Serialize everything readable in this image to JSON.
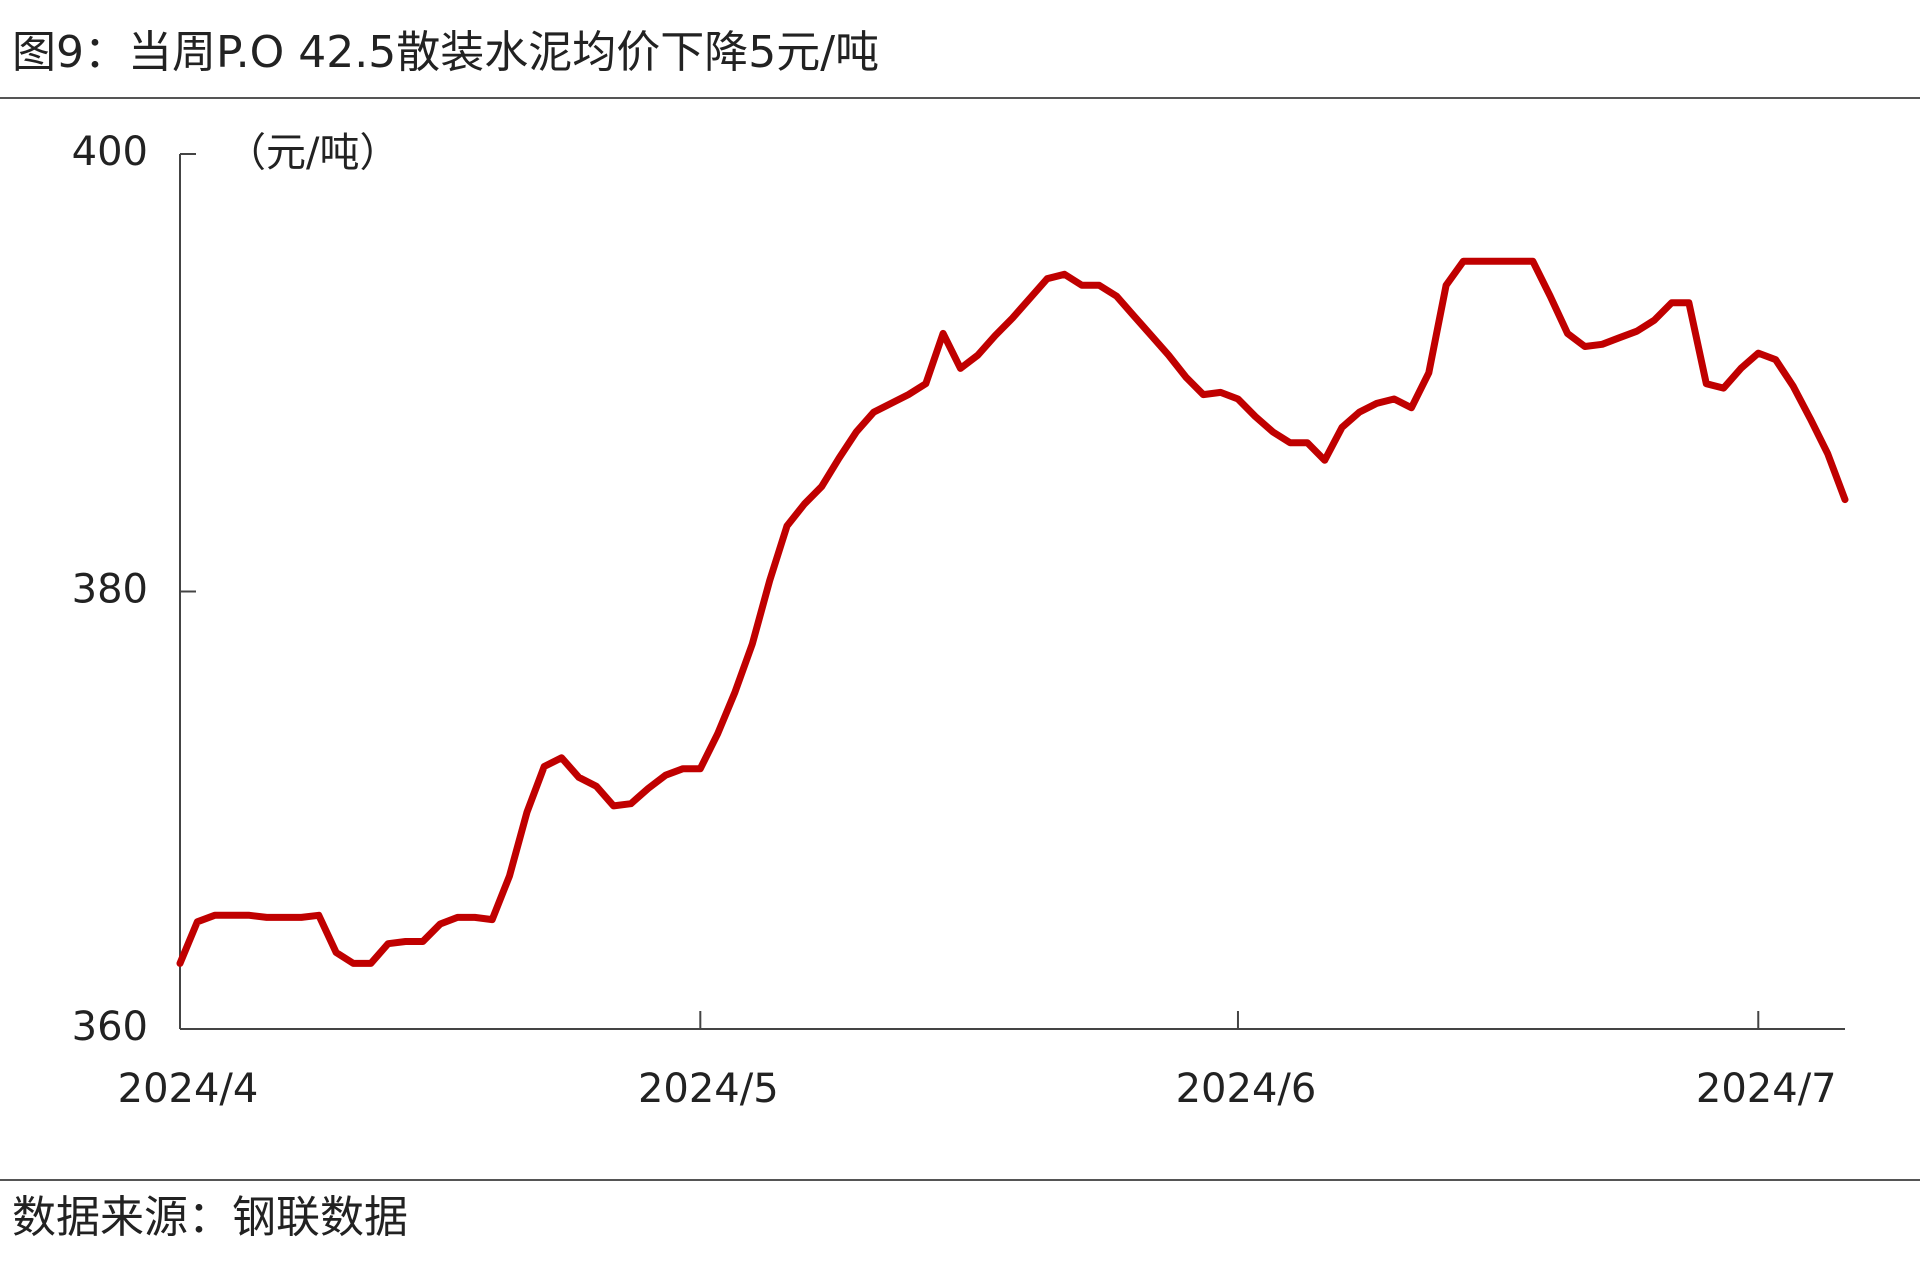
{
  "chart_data": {
    "type": "line",
    "title": "图9：当周P.O 42.5散装水泥均价下降5元/吨",
    "y_label": "（元/吨）",
    "source": "数据来源：钢联数据",
    "x": [
      0,
      1,
      2,
      3,
      4,
      5,
      6,
      7,
      8,
      9,
      10,
      11,
      12,
      13,
      14,
      15,
      16,
      17,
      18,
      19,
      20,
      21,
      22,
      23,
      24,
      25,
      26,
      27,
      28,
      29,
      30,
      31,
      32,
      33,
      34,
      35,
      36,
      37,
      38,
      39,
      40,
      41,
      42,
      43,
      44,
      45,
      46,
      47,
      48,
      49,
      50,
      51,
      52,
      53,
      54,
      55,
      56,
      57,
      58,
      59,
      60,
      61,
      62,
      63,
      64,
      65,
      66,
      67,
      68,
      69,
      70,
      71,
      72,
      73,
      74,
      75,
      76,
      77,
      78,
      79,
      80,
      81,
      82,
      83,
      84,
      85,
      86,
      87,
      88,
      89,
      90,
      91,
      92,
      93,
      94,
      95,
      96
    ],
    "series": [
      {
        "name": "P.O 42.5散装水泥均价",
        "color": "#c00000",
        "values": [
          363,
          364.9,
          365.2,
          365.2,
          365.2,
          365.1,
          365.1,
          365.1,
          365.2,
          363.5,
          363,
          363,
          363.9,
          364,
          364,
          364.8,
          365.1,
          365.1,
          365,
          367,
          369.9,
          372,
          372.4,
          371.5,
          371.1,
          370.2,
          370.3,
          371,
          371.6,
          371.9,
          371.9,
          373.5,
          375.4,
          377.6,
          380.5,
          383,
          384,
          384.8,
          386.1,
          387.3,
          388.2,
          388.6,
          389,
          389.5,
          391.8,
          390.2,
          390.8,
          391.7,
          392.5,
          393.4,
          394.3,
          394.5,
          394,
          394,
          393.5,
          392.6,
          391.7,
          390.8,
          389.8,
          389,
          389.1,
          388.8,
          388,
          387.3,
          386.8,
          386.8,
          386,
          387.5,
          388.2,
          388.6,
          388.8,
          388.4,
          390,
          394,
          395.1,
          395.1,
          395.1,
          395.1,
          395.1,
          393.5,
          391.8,
          391.2,
          391.3,
          391.6,
          391.9,
          392.4,
          393.2,
          393.2,
          389.5,
          389.3,
          390.2,
          390.9,
          390.6,
          389.4,
          387.9,
          386.3,
          384.2
        ]
      }
    ],
    "xlim": [
      0,
      96
    ],
    "xticks": [
      {
        "value": 0,
        "label": "2024/4"
      },
      {
        "value": 30,
        "label": "2024/5"
      },
      {
        "value": 61,
        "label": "2024/6"
      },
      {
        "value": 91,
        "label": "2024/7"
      }
    ],
    "ylim": [
      360,
      400
    ],
    "yticks": [
      360,
      380,
      400
    ],
    "grid": false
  }
}
